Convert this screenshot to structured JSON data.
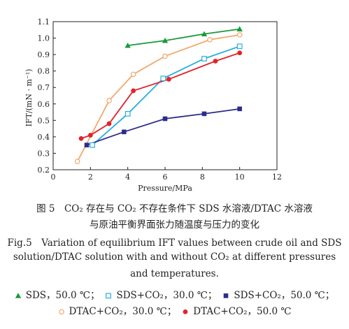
{
  "chart_data": {
    "type": "line",
    "xlabel": "Pressure/MPa",
    "ylabel": "IFT/(mN · m⁻¹)",
    "xlim": [
      0,
      12
    ],
    "ylim": [
      0.2,
      1.1
    ],
    "xticks": [
      0,
      2,
      4,
      6,
      8,
      10,
      12
    ],
    "yticks": [
      0.2,
      0.3,
      0.4,
      0.5,
      0.6,
      0.7,
      0.8,
      0.9,
      1.0,
      1.1
    ],
    "xtick_labels": [
      "0",
      "2",
      "4",
      "6",
      "8",
      "10",
      "12"
    ],
    "ytick_labels": [
      "0.2",
      "0.3",
      "0.4",
      "0.5",
      "0.6",
      "0.7",
      "0.8",
      "0.9",
      "1.0",
      "1.1"
    ],
    "grid": false,
    "series": [
      {
        "name": "SDS，50.0 ℃",
        "marker": "triangle",
        "color": "#1a9a3c",
        "x": [
          4.0,
          6.0,
          8.1,
          10.0
        ],
        "y": [
          0.955,
          0.985,
          1.025,
          1.055
        ]
      },
      {
        "name": "SDS+CO₂，30.0 ℃",
        "marker": "square-open",
        "color": "#27aee0",
        "x": [
          2.1,
          4.0,
          5.9,
          8.1,
          10.0
        ],
        "y": [
          0.35,
          0.54,
          0.755,
          0.875,
          0.95
        ]
      },
      {
        "name": "SDS+CO₂，50.0 ℃",
        "marker": "square",
        "color": "#2b2d8c",
        "x": [
          1.8,
          3.8,
          6.0,
          8.1,
          10.0
        ],
        "y": [
          0.35,
          0.43,
          0.51,
          0.54,
          0.57
        ]
      },
      {
        "name": "DTAC+CO₂，30.0 ℃",
        "marker": "circle-open",
        "color": "#f4a86a",
        "x": [
          1.3,
          3.0,
          4.3,
          6.0,
          8.4,
          10.0
        ],
        "y": [
          0.25,
          0.62,
          0.78,
          0.89,
          0.99,
          1.02
        ]
      },
      {
        "name": "DTAC+CO₂，50.0 ℃",
        "marker": "circle",
        "color": "#e0242a",
        "x": [
          1.5,
          2.0,
          3.0,
          4.3,
          6.2,
          8.7,
          10.0
        ],
        "y": [
          0.39,
          0.41,
          0.48,
          0.68,
          0.75,
          0.86,
          0.91
        ]
      }
    ]
  },
  "caption": {
    "cn_line1": "图 5　CO₂ 存在与 CO₂ 不存在条件下 SDS 水溶液/DTAC 水溶液",
    "cn_line2": "与原油平衡界面张力随温度与压力的变化",
    "en_line1": "Fig.5　Variation of equilibrium IFT values between crude oil and SDS",
    "en_line2": "solution/DTAC solution with and without CO₂ at different pressures",
    "en_line3": "and temperatures."
  },
  "legend": {
    "row1": [
      {
        "label": "SDS，50.0 ℃；",
        "marker": "triangle",
        "color": "#1a9a3c"
      },
      {
        "label": "SDS+CO₂，30.0 ℃；",
        "marker": "square-open",
        "color": "#27aee0"
      },
      {
        "label": "SDS+CO₂，50.0 ℃；",
        "marker": "square",
        "color": "#2b2d8c"
      }
    ],
    "row2": [
      {
        "label": "DTAC+CO₂，30.0 ℃；",
        "marker": "circle-open",
        "color": "#f4a86a"
      },
      {
        "label": "DTAC+CO₂，50.0 ℃",
        "marker": "circle",
        "color": "#e0242a"
      }
    ]
  }
}
